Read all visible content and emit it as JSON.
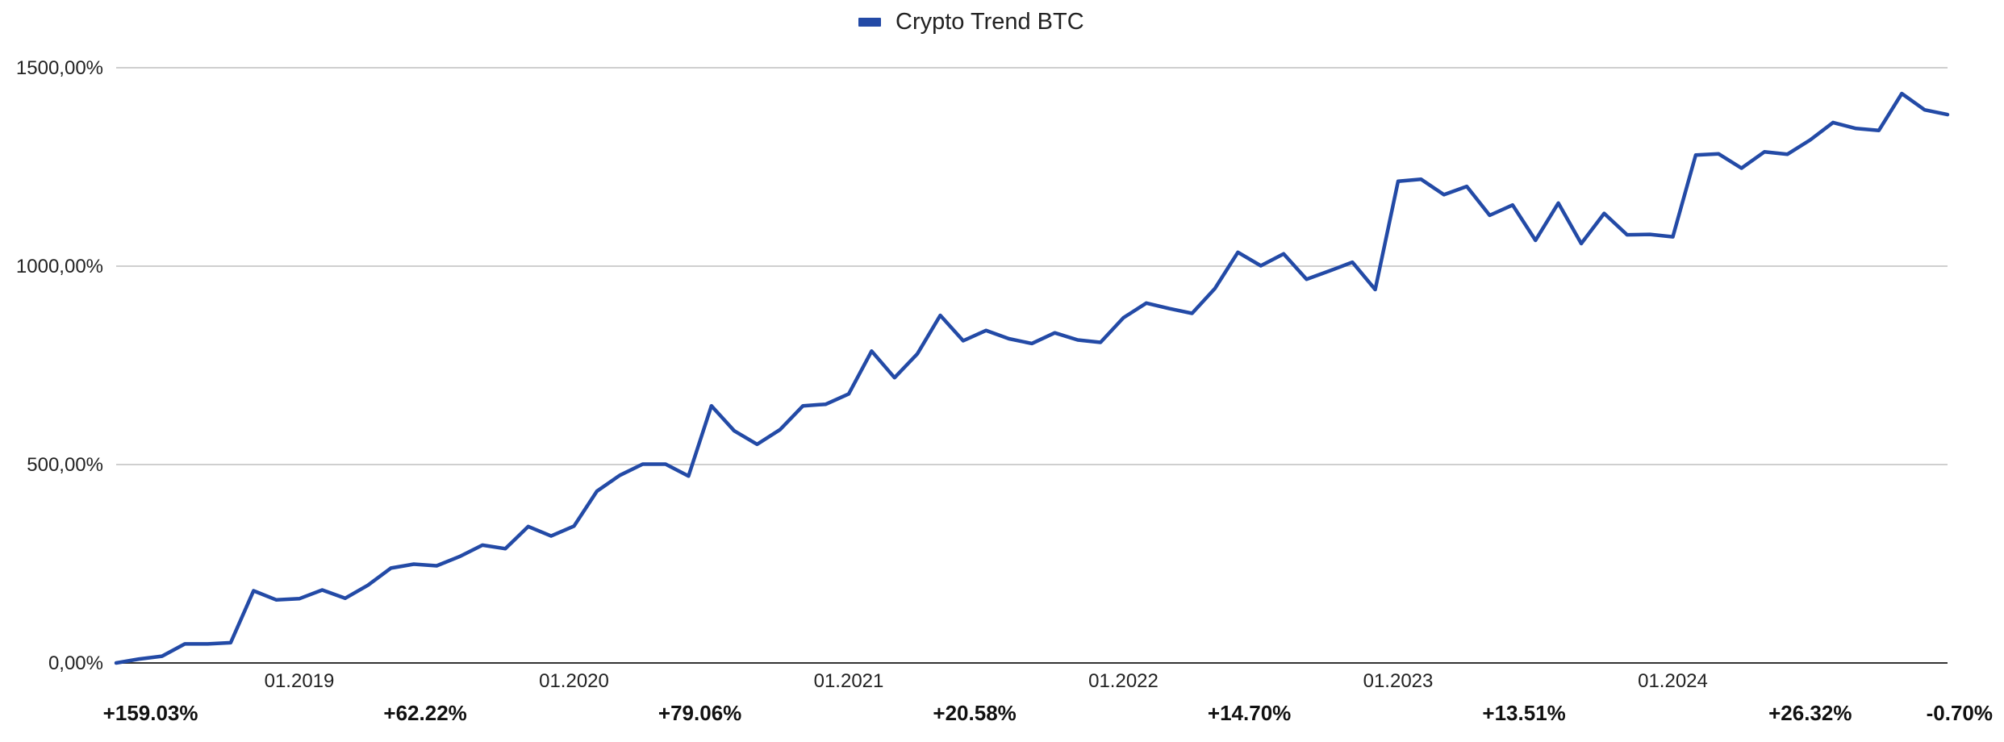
{
  "chart_data": {
    "type": "line",
    "legend": {
      "position": "top-center"
    },
    "grid": true,
    "series": [
      {
        "name": "Crypto Trend BTC",
        "color": "#234aa6",
        "values": [
          0,
          10,
          17,
          48,
          48,
          51,
          182,
          159,
          162,
          184,
          163,
          196,
          239,
          249,
          245,
          268,
          297,
          288,
          344,
          320,
          345,
          433,
          473,
          501,
          501,
          471,
          648,
          585,
          551,
          588,
          648,
          652,
          678,
          786,
          719,
          779,
          876,
          812,
          838,
          817,
          805,
          832,
          814,
          808,
          870,
          907,
          893,
          881,
          944,
          1035,
          1001,
          1031,
          967,
          988,
          1010,
          941,
          1214,
          1219,
          1180,
          1201,
          1128,
          1154,
          1065,
          1159,
          1057,
          1133,
          1079,
          1080,
          1074,
          1280,
          1283,
          1247,
          1288,
          1282,
          1318,
          1362,
          1347,
          1342,
          1435,
          1394,
          1382
        ]
      }
    ],
    "ylim": [
      0,
      1500
    ],
    "y_ticks": [
      "0,00%",
      "500,00%",
      "1000,00%",
      "1500,00%"
    ],
    "y_tick_values": [
      0,
      500,
      1000,
      1500
    ],
    "x_ticks": [
      "01.2019",
      "01.2020",
      "01.2021",
      "01.2022",
      "01.2023",
      "01.2024"
    ],
    "x_tick_indices": [
      8,
      20,
      32,
      44,
      56,
      68
    ],
    "annual_returns": [
      "+159.03%",
      "+62.22%",
      "+79.06%",
      "+20.58%",
      "+14.70%",
      "+13.51%",
      "+26.32%",
      "-0.70%"
    ]
  }
}
